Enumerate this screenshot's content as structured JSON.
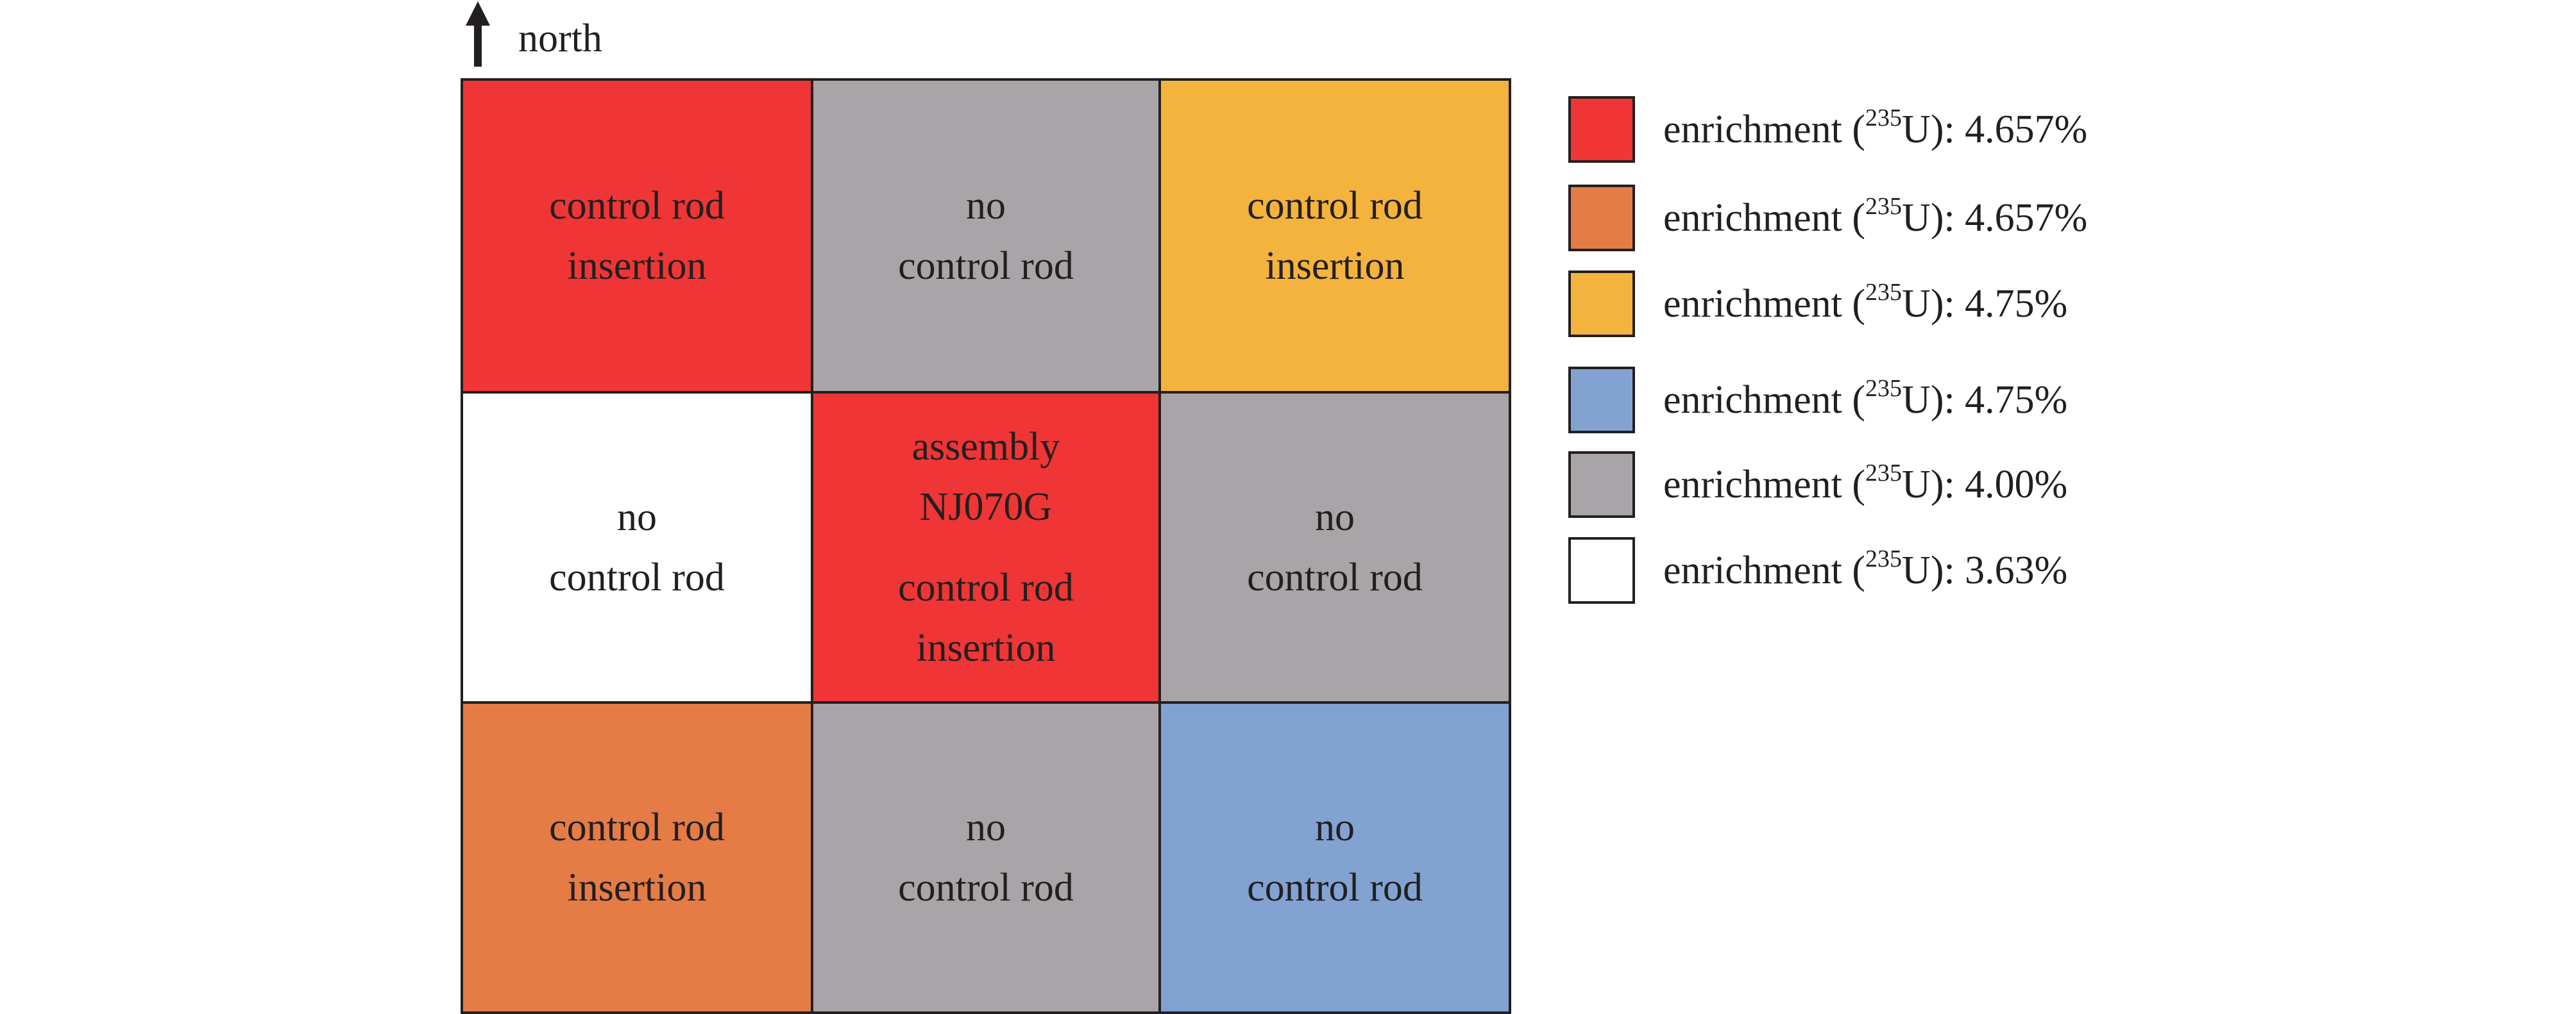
{
  "north": {
    "label": "north",
    "icon": "up-arrow-icon"
  },
  "grid": {
    "cells": [
      {
        "lines": [
          "control rod",
          "insertion"
        ],
        "color": "#ef3535"
      },
      {
        "lines": [
          "no",
          "control rod"
        ],
        "color": "#a8a4a7"
      },
      {
        "lines": [
          "control rod",
          "insertion"
        ],
        "color": "#f4b33d"
      },
      {
        "lines": [
          "no",
          "control rod"
        ],
        "color": "#ffffff"
      },
      {
        "lines": [
          "assembly",
          "NJ070G"
        ],
        "lines2": [
          "control rod",
          "insertion"
        ],
        "color": "#ef3535"
      },
      {
        "lines": [
          "no",
          "control rod"
        ],
        "color": "#a8a4a7"
      },
      {
        "lines": [
          "control rod",
          "insertion"
        ],
        "color": "#e57c46"
      },
      {
        "lines": [
          "no",
          "control rod"
        ],
        "color": "#a8a4a7"
      },
      {
        "lines": [
          "no",
          "control rod"
        ],
        "color": "#82a2d2"
      }
    ]
  },
  "legend": {
    "items": [
      {
        "prefix": "enrichment (",
        "isotope_mass": "235",
        "isotope_symbol": "U",
        "suffix": "): 4.657%",
        "color": "#ef3535"
      },
      {
        "prefix": "enrichment (",
        "isotope_mass": "235",
        "isotope_symbol": "U",
        "suffix": "): 4.657%",
        "color": "#e57c46"
      },
      {
        "prefix": "enrichment (",
        "isotope_mass": "235",
        "isotope_symbol": "U",
        "suffix": "): 4.75%",
        "color": "#f4b33d"
      },
      {
        "prefix": "enrichment (",
        "isotope_mass": "235",
        "isotope_symbol": "U",
        "suffix": "): 4.75%",
        "color": "#82a2d2"
      },
      {
        "prefix": "enrichment (",
        "isotope_mass": "235",
        "isotope_symbol": "U",
        "suffix": "): 4.00%",
        "color": "#a8a4a7"
      },
      {
        "prefix": "enrichment (",
        "isotope_mass": "235",
        "isotope_symbol": "U",
        "suffix": "): 3.63%",
        "color": "#ffffff"
      }
    ]
  }
}
